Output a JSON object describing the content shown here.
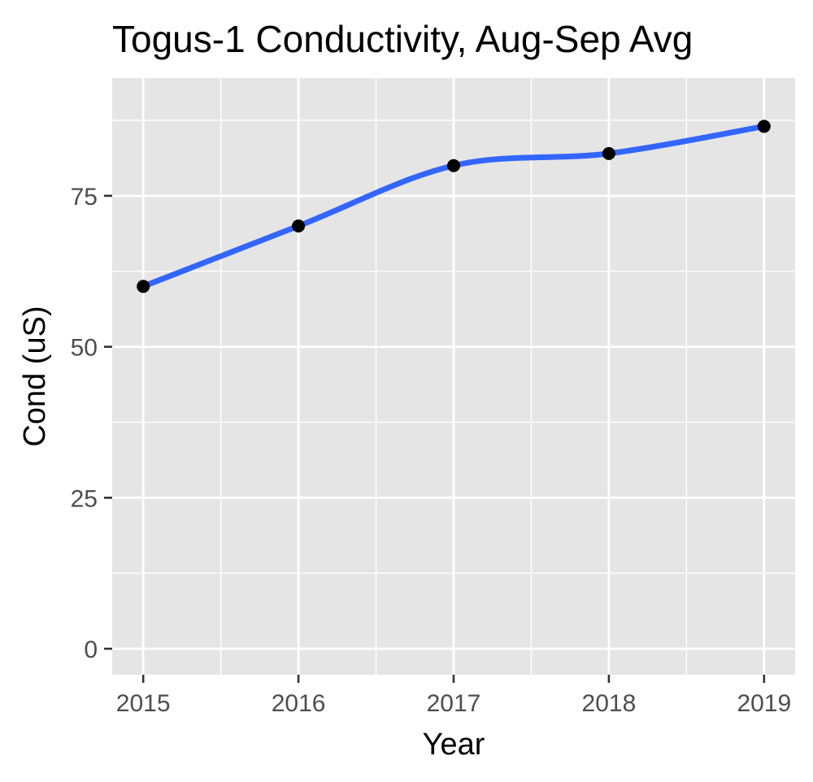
{
  "chart_data": {
    "type": "line",
    "title": "Togus-1 Conductivity, Aug-Sep Avg",
    "xlabel": "Year",
    "ylabel": "Cond (uS)",
    "x": [
      2015,
      2016,
      2017,
      2018,
      2019
    ],
    "series": [
      {
        "values": [
          60,
          70,
          80,
          82,
          86.5
        ],
        "style": "points with smoothed line"
      }
    ],
    "x_ticks": [
      "2015",
      "2016",
      "2017",
      "2018",
      "2019"
    ],
    "y_ticks": [
      "0",
      "25",
      "50",
      "75"
    ],
    "xlim": [
      2014.8,
      2019.2
    ],
    "ylim": [
      -4.3,
      94.5
    ],
    "grid": true,
    "legend": "none",
    "colors": {
      "panel": "#e5e5e5",
      "grid": "#ffffff",
      "points": "#000000",
      "line": "#3366ff"
    }
  }
}
